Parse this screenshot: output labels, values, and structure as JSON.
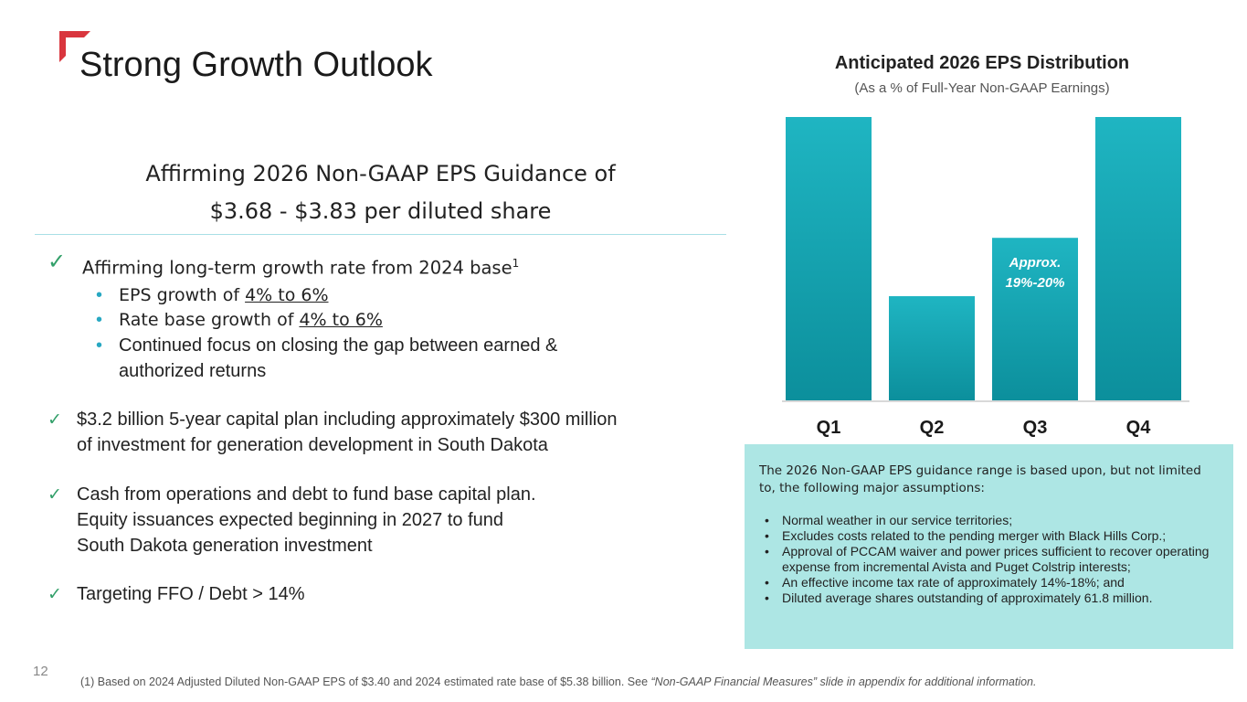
{
  "title": "Strong Growth Outlook",
  "subheading": {
    "line1": "Affirming 2026 Non-GAAP EPS Guidance of",
    "line2": "$3.68 - $3.83 per diluted share"
  },
  "check_symbol": "✓",
  "points": {
    "p1": {
      "text": "Affirming long-term growth rate from 2024 base",
      "sup": "1"
    },
    "p1_sub": {
      "s1": {
        "prefix": "EPS growth of ",
        "value": "4% to 6%"
      },
      "s2": {
        "prefix": "Rate base growth of ",
        "value": "4% to 6%"
      },
      "s3": {
        "line1": "Continued focus on closing the gap between earned &",
        "line2": "authorized returns"
      }
    },
    "p2": {
      "line1": "$3.2 billion 5-year capital plan including approximately $300 million",
      "line2": "of investment for generation development in South Dakota"
    },
    "p3": {
      "line1": "Cash from operations and debt to fund base capital plan.",
      "line2": "Equity issuances expected beginning in 2027 to fund",
      "line3": "South Dakota generation investment"
    },
    "p4": {
      "text": "Targeting FFO / Debt > 14%"
    }
  },
  "bullet_symbol": "•",
  "chart_data": {
    "type": "bar",
    "title": "Anticipated 2026 EPS Distribution",
    "subtitle": "(As a % of Full-Year Non-GAAP Earnings)",
    "categories": [
      "Q1",
      "Q2",
      "Q3",
      "Q4"
    ],
    "values": [
      34,
      12.5,
      19.5,
      34
    ],
    "ylim": [
      0,
      34
    ],
    "annotations": [
      {
        "category": "Q3",
        "lines": [
          "Approx.",
          "19%-20%"
        ]
      }
    ],
    "grid": false,
    "bar_color": "#1fb5c2",
    "bar_color_dark": "#0c8f9c"
  },
  "assumptions": {
    "intro": "The 2026 Non-GAAP EPS guidance range is based upon, but not limited to, the following major assumptions:",
    "items": [
      "Normal weather in our service territories;",
      "Excludes costs related to the pending merger with Black Hills Corp.;",
      "Approval of PCCAM waiver and power prices sufficient to recover operating expense from incremental Avista and Puget Colstrip interests;",
      "An effective income tax rate of approximately 14%-18%; and",
      "Diluted average shares outstanding of approximately 61.8 million."
    ],
    "bg_color": "#ade6e4"
  },
  "page_number": "12",
  "footnote": {
    "text": "(1) Based on 2024 Adjusted Diluted Non-GAAP EPS of $3.40 and 2024 estimated rate base of $5.38 billion. See ",
    "italic": "“Non-GAAP Financial Measures” slide in appendix for additional information."
  },
  "colors": {
    "accent_red": "#d9363e",
    "check_green": "#33a06a",
    "bullet_teal": "#28a8c2"
  }
}
